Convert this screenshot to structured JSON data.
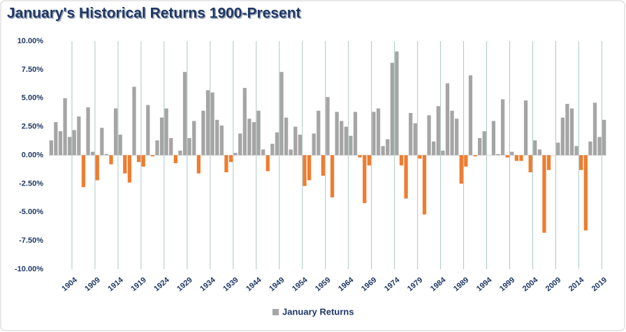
{
  "chart_data": {
    "type": "bar",
    "title": "January's Historical Returns 1900-Present",
    "categories": [
      null,
      null,
      null,
      null,
      "1904",
      null,
      null,
      null,
      null,
      "1909",
      null,
      null,
      null,
      null,
      "1914",
      null,
      null,
      null,
      null,
      "1919",
      null,
      null,
      null,
      null,
      "1924",
      null,
      null,
      null,
      null,
      "1929",
      null,
      null,
      null,
      null,
      "1934",
      null,
      null,
      null,
      null,
      "1939",
      null,
      null,
      null,
      null,
      "1944",
      null,
      null,
      null,
      null,
      "1949",
      null,
      null,
      null,
      null,
      "1954",
      null,
      null,
      null,
      null,
      "1959",
      null,
      null,
      null,
      null,
      "1964",
      null,
      null,
      null,
      null,
      "1969",
      null,
      null,
      null,
      null,
      "1974",
      null,
      null,
      null,
      null,
      "1979",
      null,
      null,
      null,
      null,
      "1984",
      null,
      null,
      null,
      null,
      "1989",
      null,
      null,
      null,
      null,
      "1994",
      null,
      null,
      null,
      null,
      "1999",
      null,
      null,
      null,
      null,
      "2004",
      null,
      null,
      null,
      null,
      "2009",
      null,
      null,
      null,
      null,
      "2014",
      null,
      null,
      null,
      null,
      "2019",
      null
    ],
    "series": [
      {
        "name": "January Returns",
        "color": "#a5a5a5",
        "negative_color": "#ed7d31",
        "values": [
          1.3,
          2.9,
          2.1,
          5.0,
          1.6,
          2.2,
          3.4,
          -2.8,
          4.2,
          0.3,
          -2.2,
          2.4,
          0.1,
          -0.8,
          4.1,
          1.8,
          -1.6,
          -2.4,
          6.0,
          -0.6,
          -1.0,
          4.4,
          -0.1,
          1.3,
          3.3,
          4.1,
          1.5,
          -0.7,
          0.4,
          7.3,
          1.5,
          3.0,
          -1.6,
          3.9,
          5.7,
          5.5,
          3.1,
          2.6,
          -1.5,
          -0.6,
          0.2,
          1.9,
          5.9,
          3.2,
          2.9,
          3.9,
          0.5,
          -1.4,
          1.0,
          2.0,
          7.3,
          3.3,
          0.5,
          2.5,
          1.8,
          -2.7,
          -2.2,
          1.9,
          3.9,
          -1.8,
          5.1,
          -3.7,
          3.8,
          3.0,
          2.5,
          1.7,
          3.8,
          -0.2,
          -4.2,
          -0.9,
          3.8,
          4.1,
          0.8,
          1.4,
          8.1,
          9.1,
          -0.9,
          -3.8,
          3.7,
          2.8,
          -0.3,
          -5.2,
          3.5,
          1.2,
          4.3,
          0.4,
          6.3,
          3.9,
          3.2,
          -2.5,
          -1.0,
          7.0,
          -0.1,
          1.5,
          2.1,
          0,
          3.0,
          0.1,
          4.9,
          -0.2,
          0.3,
          -0.5,
          -0.5,
          4.8,
          -1.5,
          1.3,
          0.5,
          -6.8,
          -1.3,
          0,
          1.1,
          3.3,
          4.5,
          4.1,
          0.8,
          -1.3,
          -6.6,
          1.2,
          4.6,
          1.6,
          3.1
        ]
      }
    ],
    "ylim": [
      -10,
      10
    ],
    "yticks": [
      {
        "value": -10,
        "label": "-10.00%"
      },
      {
        "value": -7.5,
        "label": "-7.50%"
      },
      {
        "value": -5,
        "label": "-5.00%"
      },
      {
        "value": -2.5,
        "label": "-2.50%"
      },
      {
        "value": 0,
        "label": "0.00%"
      },
      {
        "value": 2.5,
        "label": "2.50%"
      },
      {
        "value": 5,
        "label": "5.00%"
      },
      {
        "value": 7.5,
        "label": "7.50%"
      },
      {
        "value": 10,
        "label": "10.00%"
      }
    ],
    "grid": "x",
    "legend": "bottom"
  }
}
